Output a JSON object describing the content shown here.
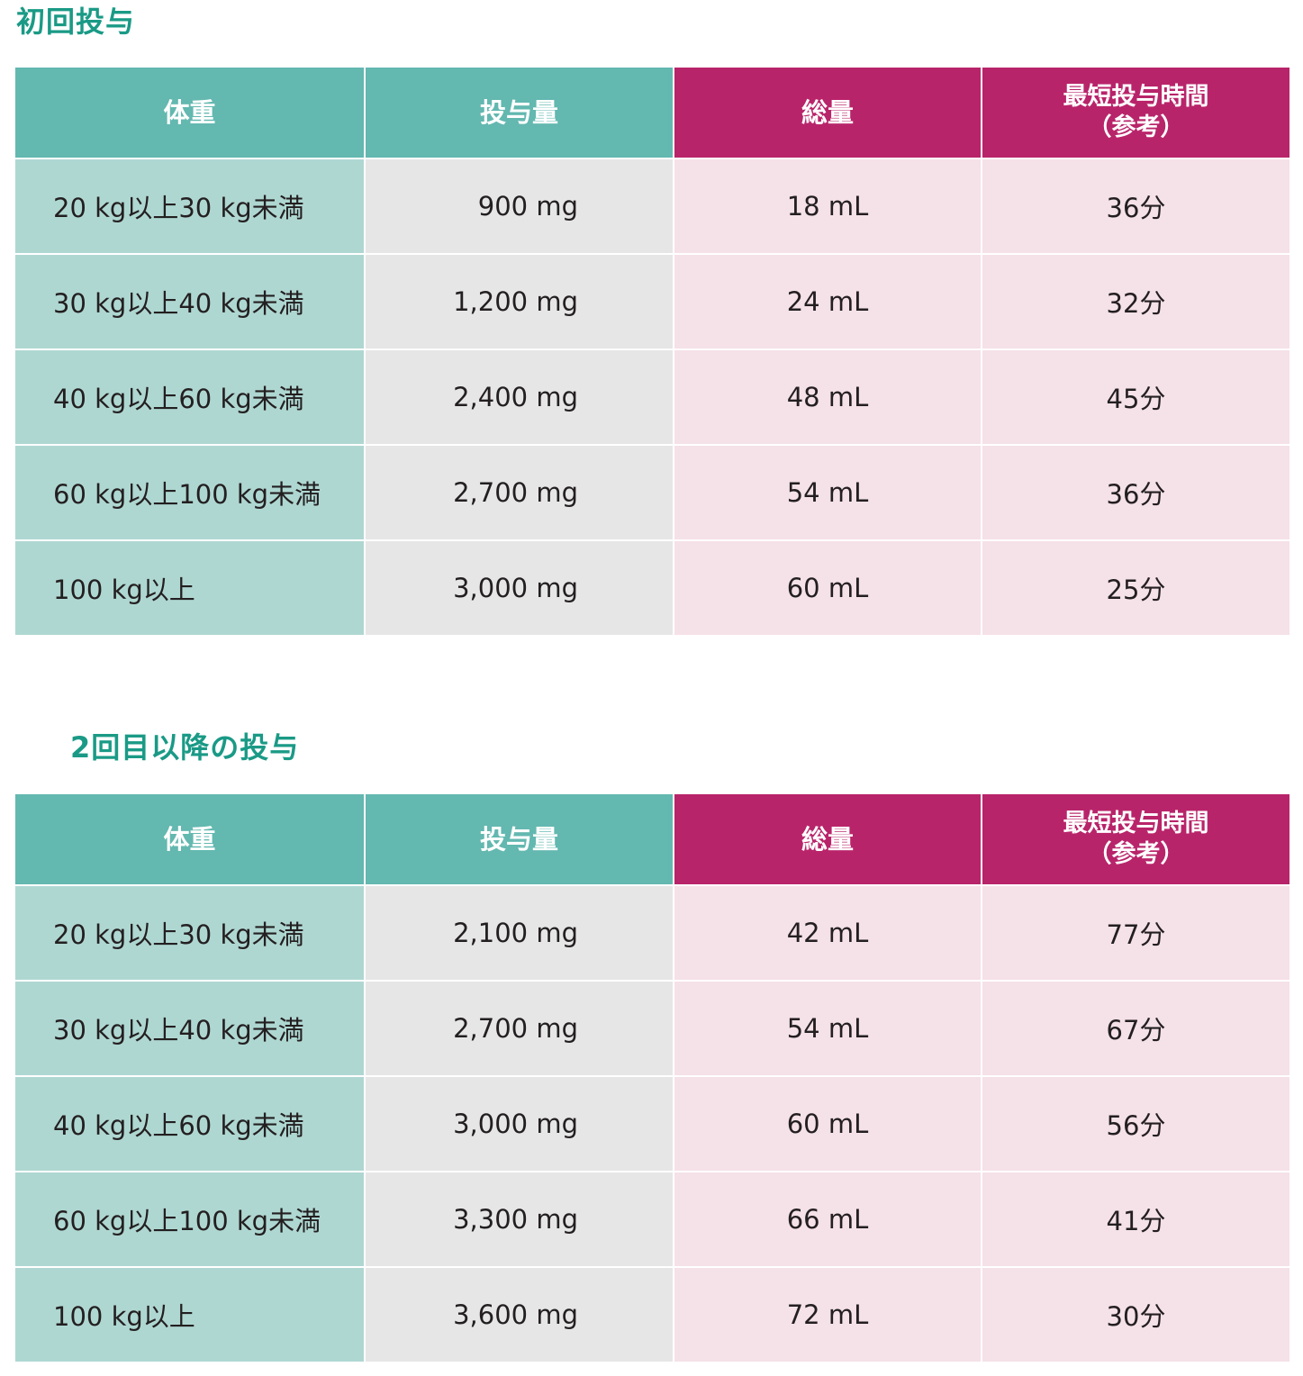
{
  "sections": [
    {
      "title": "初回投与",
      "headers": {
        "weight": "体重",
        "dose": "投与量",
        "volume": "総量",
        "time_line1": "最短投与時間",
        "time_line2": "（参考）"
      },
      "rows": [
        {
          "weight": "20 kg以上30 kg未満",
          "dose": "900 mg",
          "volume": "18 mL",
          "time": "36分"
        },
        {
          "weight": "30 kg以上40 kg未満",
          "dose": "1,200 mg",
          "volume": "24 mL",
          "time": "32分"
        },
        {
          "weight": "40 kg以上60 kg未満",
          "dose": "2,400 mg",
          "volume": "48 mL",
          "time": "45分"
        },
        {
          "weight": "60 kg以上100 kg未満",
          "dose": "2,700 mg",
          "volume": "54 mL",
          "time": "36分"
        },
        {
          "weight": "100 kg以上",
          "dose": "3,000 mg",
          "volume": "60 mL",
          "time": "25分"
        }
      ]
    },
    {
      "title": "2回目以降の投与",
      "headers": {
        "weight": "体重",
        "dose": "投与量",
        "volume": "総量",
        "time_line1": "最短投与時間",
        "time_line2": "（参考）"
      },
      "rows": [
        {
          "weight": "20 kg以上30 kg未満",
          "dose": "2,100 mg",
          "volume": "42 mL",
          "time": "77分"
        },
        {
          "weight": "30 kg以上40 kg未満",
          "dose": "2,700 mg",
          "volume": "54 mL",
          "time": "67分"
        },
        {
          "weight": "40 kg以上60 kg未満",
          "dose": "3,000 mg",
          "volume": "60 mL",
          "time": "56分"
        },
        {
          "weight": "60 kg以上100 kg未満",
          "dose": "3,300 mg",
          "volume": "66 mL",
          "time": "41分"
        },
        {
          "weight": "100 kg以上",
          "dose": "3,600 mg",
          "volume": "72 mL",
          "time": "30分"
        }
      ]
    }
  ],
  "colors": {
    "title": "#1a9a86",
    "header_teal": "#63b8b0",
    "header_magenta": "#b8246a",
    "weight_cell": "#afd7d2",
    "dose_cell": "#e6e6e6",
    "pink_cell": "#f5e1e8"
  }
}
